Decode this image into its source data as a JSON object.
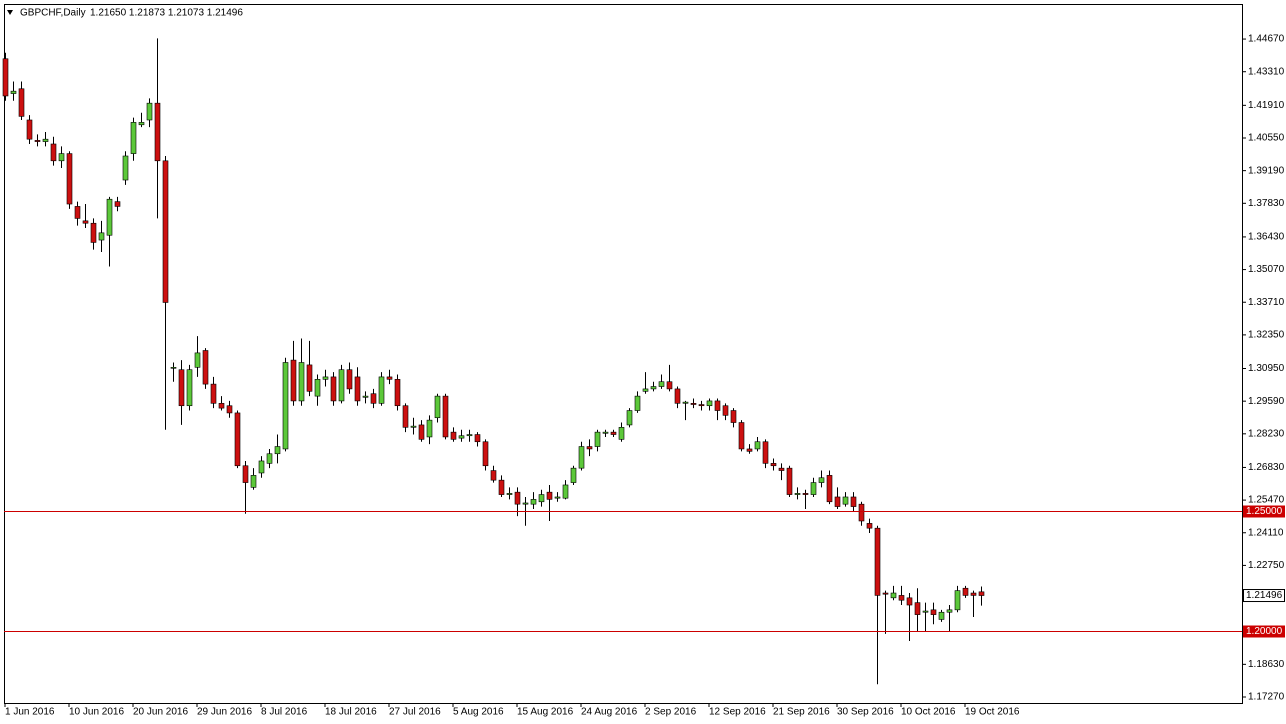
{
  "chart_data": {
    "type": "candlestick",
    "title": "GBPCHF,Daily",
    "ohlc_text": "1.21650 1.21873 1.21073 1.21496",
    "categories": [
      "1 Jun 2016",
      null,
      null,
      null,
      null,
      null,
      null,
      null,
      "10 Jun 2016",
      null,
      null,
      null,
      null,
      null,
      null,
      null,
      "20 Jun 2016",
      null,
      null,
      null,
      null,
      null,
      null,
      null,
      "29 Jun 2016",
      null,
      null,
      null,
      null,
      null,
      null,
      null,
      "8 Jul 2016",
      null,
      null,
      null,
      null,
      null,
      null,
      null,
      "18 Jul 2016",
      null,
      null,
      null,
      null,
      null,
      null,
      null,
      "27 Jul 2016",
      null,
      null,
      null,
      null,
      null,
      null,
      null,
      "5 Aug 2016",
      null,
      null,
      null,
      null,
      null,
      null,
      null,
      "15 Aug 2016",
      null,
      null,
      null,
      null,
      null,
      null,
      null,
      "24 Aug 2016",
      null,
      null,
      null,
      null,
      null,
      null,
      null,
      "2 Sep 2016",
      null,
      null,
      null,
      null,
      null,
      null,
      null,
      "12 Sep 2016",
      null,
      null,
      null,
      null,
      null,
      null,
      null,
      "21 Sep 2016",
      null,
      null,
      null,
      null,
      null,
      null,
      null,
      "30 Sep 2016",
      null,
      null,
      null,
      null,
      null,
      null,
      null,
      "10 Oct 2016",
      null,
      null,
      null,
      null,
      null,
      null,
      null,
      "19 Oct 2016",
      null,
      null
    ],
    "open": [
      1.4385,
      1.424,
      1.426,
      1.413,
      1.4045,
      1.404,
      1.403,
      1.396,
      1.399,
      1.377,
      1.371,
      1.37,
      1.363,
      1.365,
      1.379,
      1.388,
      1.399,
      1.411,
      1.413,
      1.42,
      1.396,
      1.31,
      1.309,
      1.294,
      1.31,
      1.317,
      1.303,
      1.295,
      1.294,
      1.291,
      1.269,
      1.26,
      1.266,
      1.27,
      1.274,
      1.276,
      1.313,
      1.296,
      1.311,
      1.298,
      1.305,
      1.306,
      1.296,
      1.309,
      1.306,
      1.2975,
      1.299,
      1.295,
      1.306,
      1.305,
      1.294,
      1.285,
      1.286,
      1.281,
      1.289,
      1.298,
      1.283,
      1.2805,
      1.2815,
      1.282,
      1.279,
      1.267,
      1.263,
      1.257,
      1.258,
      1.253,
      1.253,
      1.254,
      1.258,
      1.2555,
      1.2555,
      1.262,
      1.268,
      1.277,
      1.277,
      1.2825,
      1.283,
      1.28,
      1.286,
      1.292,
      1.3,
      1.301,
      1.302,
      1.304,
      1.301,
      1.295,
      1.295,
      1.2945,
      1.294,
      1.296,
      1.294,
      1.292,
      1.287,
      1.276,
      1.276,
      1.279,
      1.27,
      1.268,
      1.268,
      1.257,
      1.2575,
      1.257,
      1.262,
      1.265,
      1.256,
      1.253,
      1.256,
      1.253,
      1.245,
      1.243,
      1.216,
      1.214,
      1.215,
      1.214,
      1.212,
      1.208,
      1.209,
      1.205,
      1.208,
      1.209,
      1.218,
      1.216,
      1.2165
    ],
    "high": [
      1.441,
      1.429,
      1.429,
      1.415,
      1.407,
      1.408,
      1.406,
      1.402,
      1.4,
      1.379,
      1.378,
      1.372,
      1.371,
      1.381,
      1.381,
      1.4,
      1.414,
      1.416,
      1.422,
      1.447,
      1.398,
      1.312,
      1.313,
      1.311,
      1.323,
      1.318,
      1.306,
      1.298,
      1.296,
      1.292,
      1.271,
      1.268,
      1.273,
      1.276,
      1.282,
      1.314,
      1.321,
      1.322,
      1.321,
      1.307,
      1.309,
      1.308,
      1.311,
      1.312,
      1.31,
      1.3,
      1.301,
      1.308,
      1.309,
      1.307,
      1.295,
      1.289,
      1.288,
      1.29,
      1.299,
      1.299,
      1.285,
      1.284,
      1.284,
      1.283,
      1.28,
      1.269,
      1.265,
      1.26,
      1.26,
      1.256,
      1.258,
      1.259,
      1.261,
      1.258,
      1.263,
      1.269,
      1.279,
      1.28,
      1.284,
      1.284,
      1.284,
      1.287,
      1.293,
      1.3,
      1.308,
      1.304,
      1.307,
      1.311,
      1.302,
      1.296,
      1.297,
      1.296,
      1.297,
      1.297,
      1.295,
      1.293,
      1.288,
      1.278,
      1.281,
      1.28,
      1.272,
      1.27,
      1.269,
      1.26,
      1.259,
      1.264,
      1.267,
      1.267,
      1.26,
      1.258,
      1.258,
      1.254,
      1.247,
      1.244,
      1.217,
      1.219,
      1.219,
      1.216,
      1.218,
      1.212,
      1.212,
      1.209,
      1.211,
      1.219,
      1.219,
      1.217,
      1.21873
    ],
    "low": [
      1.421,
      1.421,
      1.413,
      1.403,
      1.402,
      1.402,
      1.394,
      1.393,
      1.376,
      1.369,
      1.368,
      1.359,
      1.358,
      1.352,
      1.375,
      1.386,
      1.396,
      1.41,
      1.41,
      1.372,
      1.284,
      1.304,
      1.286,
      1.292,
      1.306,
      1.301,
      1.293,
      1.292,
      1.289,
      1.268,
      1.249,
      1.259,
      1.264,
      1.268,
      1.27,
      1.275,
      1.294,
      1.294,
      1.298,
      1.294,
      1.302,
      1.294,
      1.295,
      1.299,
      1.294,
      1.295,
      1.293,
      1.294,
      1.303,
      1.292,
      1.283,
      1.282,
      1.279,
      1.278,
      1.287,
      1.28,
      1.279,
      1.279,
      1.279,
      1.277,
      1.267,
      1.262,
      1.256,
      1.255,
      1.248,
      1.244,
      1.251,
      1.252,
      1.246,
      1.254,
      1.255,
      1.261,
      1.267,
      1.273,
      1.275,
      1.281,
      1.281,
      1.279,
      1.285,
      1.291,
      1.299,
      1.3,
      1.301,
      1.3,
      1.293,
      1.288,
      1.293,
      1.292,
      1.292,
      1.288,
      1.288,
      1.285,
      1.275,
      1.274,
      1.275,
      1.268,
      1.267,
      1.263,
      1.256,
      1.255,
      1.251,
      1.256,
      1.26,
      1.253,
      1.251,
      1.252,
      1.25,
      1.244,
      1.241,
      1.178,
      1.199,
      1.213,
      1.211,
      1.196,
      1.2,
      1.2,
      1.203,
      1.204,
      1.2,
      1.208,
      1.214,
      1.206,
      1.21073
    ],
    "close": [
      1.423,
      1.425,
      1.4145,
      1.405,
      1.404,
      1.405,
      1.396,
      1.399,
      1.378,
      1.372,
      1.37,
      1.362,
      1.366,
      1.38,
      1.377,
      1.398,
      1.412,
      1.412,
      1.42,
      1.396,
      1.337,
      1.31,
      1.294,
      1.309,
      1.316,
      1.303,
      1.295,
      1.293,
      1.291,
      1.269,
      1.262,
      1.265,
      1.271,
      1.274,
      1.277,
      1.312,
      1.296,
      1.312,
      1.3,
      1.305,
      1.306,
      1.296,
      1.309,
      1.301,
      1.296,
      1.298,
      1.295,
      1.306,
      1.305,
      1.294,
      1.285,
      1.2855,
      1.28,
      1.288,
      1.298,
      1.281,
      1.28,
      1.2815,
      1.282,
      1.279,
      1.269,
      1.263,
      1.257,
      1.2575,
      1.253,
      1.2535,
      1.255,
      1.257,
      1.255,
      1.256,
      1.261,
      1.268,
      1.277,
      1.276,
      1.283,
      1.283,
      1.282,
      1.285,
      1.292,
      1.298,
      1.301,
      1.302,
      1.304,
      1.301,
      1.295,
      1.2955,
      1.2945,
      1.294,
      1.296,
      1.292,
      1.29,
      1.287,
      1.276,
      1.275,
      1.279,
      1.27,
      1.269,
      1.267,
      1.257,
      1.2575,
      1.257,
      1.262,
      1.264,
      1.254,
      1.252,
      1.256,
      1.252,
      1.246,
      1.243,
      1.215,
      1.2155,
      1.216,
      1.213,
      1.211,
      1.207,
      1.2085,
      1.207,
      1.208,
      1.209,
      1.217,
      1.215,
      1.215,
      1.21496
    ],
    "up_color": "#5cc83a",
    "down_color": "#cc1010",
    "ylim": [
      1.1702,
      1.4613
    ],
    "yticks": [
      {
        "value": 1.4467,
        "label": "1.44670"
      },
      {
        "value": 1.4331,
        "label": "1.43310"
      },
      {
        "value": 1.4191,
        "label": "1.41910"
      },
      {
        "value": 1.4055,
        "label": "1.40550"
      },
      {
        "value": 1.3919,
        "label": "1.39190"
      },
      {
        "value": 1.3783,
        "label": "1.37830"
      },
      {
        "value": 1.3643,
        "label": "1.36430"
      },
      {
        "value": 1.3507,
        "label": "1.35070"
      },
      {
        "value": 1.3371,
        "label": "1.33710"
      },
      {
        "value": 1.3235,
        "label": "1.32350"
      },
      {
        "value": 1.3095,
        "label": "1.30950"
      },
      {
        "value": 1.2959,
        "label": "1.29590"
      },
      {
        "value": 1.2823,
        "label": "1.28230"
      },
      {
        "value": 1.2683,
        "label": "1.26830"
      },
      {
        "value": 1.2547,
        "label": "1.25470"
      },
      {
        "value": 1.2411,
        "label": "1.24110"
      },
      {
        "value": 1.2275,
        "label": "1.22750"
      },
      {
        "value": 1.1863,
        "label": "1.18630"
      },
      {
        "value": 1.1727,
        "label": "1.17270"
      }
    ],
    "hlines": [
      {
        "value": 1.25,
        "label": "1.25000",
        "color": "#cc0000"
      },
      {
        "value": 1.2,
        "label": "1.20000",
        "color": "#cc0000"
      }
    ],
    "grid": false
  }
}
